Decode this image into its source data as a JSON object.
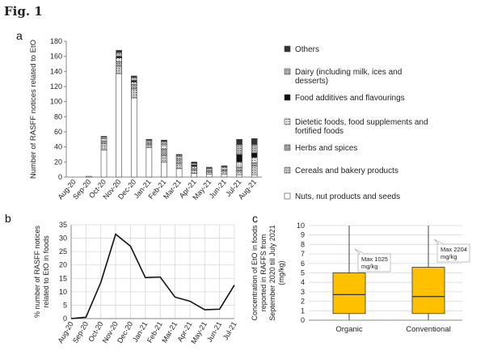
{
  "figure": {
    "title": "Fig. 1"
  },
  "panels": {
    "a": "a",
    "b": "b",
    "c": "c"
  },
  "chart_data": [
    {
      "id": "a",
      "type": "bar",
      "stacked": true,
      "categories": [
        "Aug-20",
        "Sep-20",
        "Oct-20",
        "Nov-20",
        "Dec-20",
        "Jan-21",
        "Feb-21",
        "Mar-21",
        "Apr-21",
        "May-21",
        "Jun-21",
        "Jul-21",
        "Aug-21"
      ],
      "series": [
        {
          "name": "Nuts, nut products and seeds",
          "color": "#ffffff",
          "values": [
            0,
            1,
            36,
            137,
            105,
            39,
            20,
            11,
            5,
            4,
            4,
            3,
            3
          ]
        },
        {
          "name": "Cereals and bakery products",
          "color": "#c8c8c8",
          "values": [
            0,
            0,
            9,
            10,
            12,
            4,
            9,
            7,
            4,
            3,
            4,
            5,
            12
          ]
        },
        {
          "name": "Herbs and spices",
          "color": "#a8a8a8",
          "values": [
            0,
            0,
            3,
            6,
            6,
            3,
            8,
            6,
            2,
            2,
            2,
            5,
            4
          ]
        },
        {
          "name": "Dietetic foods, food supplements and fortified foods",
          "color": "#e2e2e2",
          "values": [
            0,
            0,
            3,
            5,
            3,
            2,
            6,
            3,
            3,
            2,
            3,
            7,
            7
          ]
        },
        {
          "name": "Food additives and flavourings",
          "color": "#111111",
          "values": [
            0,
            0,
            0,
            2,
            2,
            0,
            0,
            0,
            2,
            0,
            0,
            10,
            6
          ]
        },
        {
          "name": "Dairy (including milk, ices and desserts)",
          "color": "#b4b4b4",
          "values": [
            0,
            0,
            2,
            5,
            4,
            1,
            4,
            2,
            2,
            1,
            1,
            13,
            11
          ]
        },
        {
          "name": "Others",
          "color": "#333333",
          "values": [
            0,
            0,
            1,
            3,
            2,
            1,
            2,
            1,
            2,
            1,
            1,
            7,
            8
          ]
        }
      ],
      "ylabel": "Number of RASFF notices related to EtO",
      "ylim": [
        0,
        180
      ],
      "yticks": [
        0,
        20,
        40,
        60,
        80,
        100,
        120,
        140,
        160,
        180
      ],
      "grid": false,
      "legend": "right"
    },
    {
      "id": "b",
      "type": "line",
      "x": [
        "Aug-20",
        "Sep-20",
        "Oct-20",
        "Nov-20",
        "Dec-20",
        "Jan-21",
        "Feb-21",
        "Mar-21",
        "Apr-21",
        "May-21",
        "Jun-21",
        "Jul-21"
      ],
      "y": [
        0,
        0.5,
        13.5,
        31.5,
        27,
        15.3,
        15.5,
        8,
        6.5,
        3.3,
        3.5,
        12.5
      ],
      "ylabel": "% number of RASFF notices related to EtO in foods",
      "ylim": [
        0,
        35
      ],
      "yticks": [
        0,
        5,
        10,
        15,
        20,
        25,
        30,
        35
      ],
      "grid": true
    },
    {
      "id": "c",
      "type": "box",
      "categories": [
        "Organic",
        "Conventional"
      ],
      "boxes": [
        {
          "name": "Organic",
          "whisker_low": 0,
          "q1": 0.7,
          "median": 2.7,
          "q3": 5.0,
          "whisker_high": 10,
          "annotation": "Max 1025 mg/kg"
        },
        {
          "name": "Conventional",
          "whisker_low": 0,
          "q1": 0.7,
          "median": 2.5,
          "q3": 5.6,
          "whisker_high": 10,
          "annotation": "Max 2204 mg/kg"
        }
      ],
      "box_color": "#ffc000",
      "ylabel": "Concentration of EtO in foods reported in RAFFS from September 2020 till July 2021 (mg/kg)",
      "ylim": [
        0,
        10
      ],
      "yticks": [
        0,
        1,
        2,
        3,
        4,
        5,
        6,
        7,
        8,
        9,
        10
      ],
      "grid": true
    }
  ]
}
